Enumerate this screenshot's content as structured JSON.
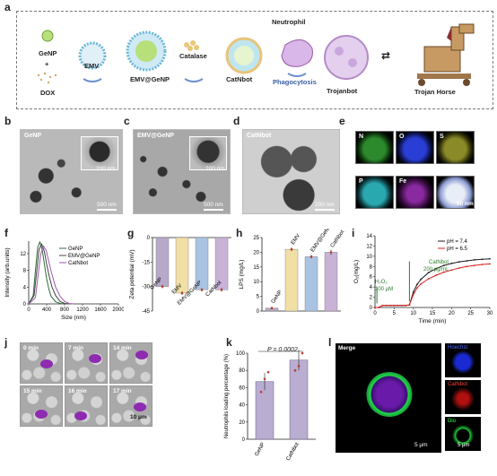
{
  "panels": {
    "a": {
      "letter": "a",
      "labels": {
        "genp": "GeNP",
        "plus": "+",
        "dox": "DOX",
        "emv": "EMV",
        "emv_genp": "EMV@GeNP",
        "catalase": "Catalase",
        "catnbot": "CatNbot",
        "neutrophil": "Neutrophil",
        "phagocytosis": "Phagocytosis",
        "trojanbot": "Trojanbot",
        "arrow": "⇄",
        "trojan_horse": "Trojan Horse"
      }
    },
    "b": {
      "letter": "b",
      "label": "GeNP",
      "inset_scale": "200 nm",
      "scale": "500 nm"
    },
    "c": {
      "letter": "c",
      "label": "EMV@GeNP",
      "inset_scale": "200 nm",
      "scale": "500 nm"
    },
    "d": {
      "letter": "d",
      "label": "CatNbot",
      "scale": "200 nm"
    },
    "e": {
      "letter": "e",
      "maps": [
        "N",
        "O",
        "S",
        "P",
        "Fe",
        ""
      ],
      "scale": "50 nm"
    },
    "f": {
      "letter": "f"
    },
    "g": {
      "letter": "g"
    },
    "h": {
      "letter": "h"
    },
    "i": {
      "letter": "i",
      "ann_h2o2": "H₂O₂",
      "ann_h2o2_conc": "100 μM",
      "ann_cat": "CatNbot",
      "ann_cat_conc": "200 μg/mL"
    },
    "j": {
      "letter": "j",
      "times": [
        "0 min",
        "7 min",
        "14 min",
        "15 min",
        "16 min",
        "17 min"
      ],
      "scale": "10 μm"
    },
    "k": {
      "letter": "k",
      "pvalue": "P = 0.0002"
    },
    "l": {
      "letter": "l",
      "merge": "Merge",
      "hoechst": "Hoechst",
      "catnbot": "CatNbot",
      "dio": "Dio",
      "scale_main": "5 μm",
      "scale_small": "5 μm"
    }
  },
  "chart_data": [
    {
      "id": "f",
      "type": "line",
      "xlabel": "Size (nm)",
      "ylabel": "Intensity (arb.units)",
      "xlim": [
        0,
        2000
      ],
      "ylim": [
        0,
        15
      ],
      "xticks": [
        "0",
        "400",
        "800",
        "1200",
        "1600",
        "2000"
      ],
      "yticks": [
        "0",
        "4",
        "8",
        "12"
      ],
      "series": [
        {
          "name": "GeNP",
          "color": "#2f6b3a",
          "x": [
            0,
            100,
            150,
            200,
            250,
            300,
            350,
            400,
            450,
            500,
            600,
            700,
            800
          ],
          "y": [
            0,
            2,
            8,
            13.5,
            14.8,
            13,
            9.5,
            6,
            3.5,
            1.8,
            0.5,
            0.1,
            0
          ]
        },
        {
          "name": "EMV@GeNP",
          "color": "#444444",
          "x": [
            0,
            120,
            180,
            230,
            290,
            350,
            400,
            460,
            520,
            600,
            700,
            800,
            900
          ],
          "y": [
            0,
            2,
            8,
            13,
            14.3,
            12.5,
            9.5,
            6.5,
            4,
            2,
            0.6,
            0.1,
            0
          ]
        },
        {
          "name": "CatNbot",
          "color": "#9a5aa8",
          "x": [
            0,
            150,
            210,
            270,
            330,
            390,
            450,
            520,
            600,
            700,
            800,
            900,
            1000
          ],
          "y": [
            0,
            1.5,
            7,
            12,
            13.8,
            12.8,
            10,
            7,
            4,
            1.8,
            0.6,
            0.1,
            0
          ]
        }
      ],
      "legend": "top-right"
    },
    {
      "id": "g",
      "type": "bar",
      "ylabel": "Zeta potential (mV)",
      "ylim": [
        -45,
        0
      ],
      "yticks": [
        "0",
        "-15",
        "-30",
        "-45"
      ],
      "categories": [
        "GeNP",
        "EMV",
        "EMV@GeNP",
        "CatNbot"
      ],
      "values": [
        -30,
        -34,
        -32,
        -32
      ],
      "errors": [
        0.8,
        0.6,
        0.7,
        0.8
      ],
      "colors": [
        "#b6a9c9",
        "#f1dfa6",
        "#a9c3e2",
        "#c8b2d6"
      ]
    },
    {
      "id": "h",
      "type": "bar",
      "ylabel": "LPS (mg/L)",
      "ylim": [
        0,
        25
      ],
      "yticks": [
        "0",
        "5",
        "10",
        "15",
        "20",
        "25"
      ],
      "categories": [
        "GeNP",
        "EMV",
        "EMV@GeNP",
        "CatNbot"
      ],
      "values": [
        1,
        21,
        18.5,
        20
      ],
      "errors": [
        0.4,
        0.6,
        0.6,
        0.9
      ],
      "colors": [
        "#b6a9c9",
        "#f1dfa6",
        "#a9c3e2",
        "#c8b2d6"
      ]
    },
    {
      "id": "i",
      "type": "line",
      "xlabel": "Time (min)",
      "ylabel": "O₂(mg/L)",
      "xlim": [
        0,
        30
      ],
      "ylim": [
        0,
        14
      ],
      "xticks": [
        "0",
        "5",
        "10",
        "15",
        "20",
        "25",
        "30"
      ],
      "yticks": [
        "0",
        "2",
        "4",
        "6",
        "8",
        "10",
        "12",
        "14"
      ],
      "series": [
        {
          "name": "pH = 7.4",
          "color": "#1a1a1a",
          "x": [
            0,
            1,
            2,
            3,
            4,
            5,
            6,
            7,
            8,
            9,
            10,
            11,
            12,
            14,
            16,
            18,
            20,
            22,
            24,
            26,
            28,
            30
          ],
          "y": [
            0,
            0,
            0.4,
            0.4,
            0.4,
            0.4,
            0.4,
            0.4,
            0.4,
            0.5,
            3,
            4.5,
            5.5,
            6.8,
            7.6,
            8.2,
            8.6,
            8.9,
            9.1,
            9.3,
            9.4,
            9.5
          ]
        },
        {
          "name": "pH = 6.5",
          "color": "#d62020",
          "x": [
            0,
            1,
            2,
            3,
            4,
            5,
            6,
            7,
            8,
            9,
            10,
            11,
            12,
            14,
            16,
            18,
            20,
            22,
            24,
            26,
            28,
            30
          ],
          "y": [
            0,
            0,
            0.4,
            0.4,
            0.4,
            0.4,
            0.4,
            0.4,
            0.4,
            0.5,
            2.5,
            3.8,
            4.6,
            5.6,
            6.3,
            6.9,
            7.3,
            7.7,
            8,
            8.2,
            8.4,
            8.5
          ]
        }
      ],
      "legend": "top-right"
    },
    {
      "id": "k",
      "type": "bar",
      "ylabel": "Neutrophils loading percentage (%)",
      "ylim": [
        0,
        100
      ],
      "yticks": [
        "0",
        "20",
        "40",
        "60",
        "80",
        "100"
      ],
      "categories": [
        "GeNP",
        "CatNbot"
      ],
      "values": [
        67,
        92
      ],
      "errors": [
        10,
        12
      ],
      "colors": [
        "#b9aed1",
        "#b9aed1"
      ],
      "points": [
        [
          55,
          70,
          78
        ],
        [
          80,
          85,
          100
        ]
      ]
    }
  ]
}
